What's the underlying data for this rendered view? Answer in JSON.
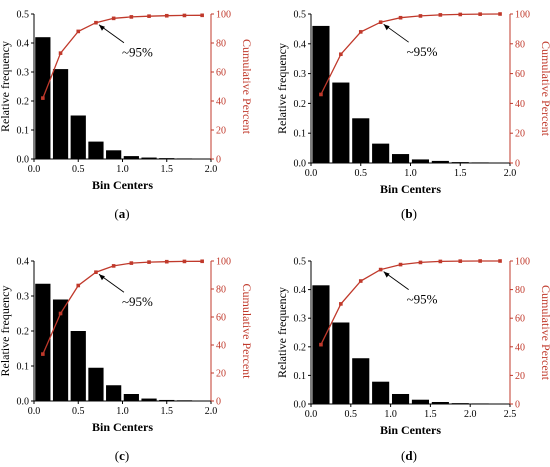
{
  "colors": {
    "bar": "#000000",
    "cumulative": "#c0392b",
    "axis": "#000000",
    "annotation": "#000000"
  },
  "chart_data": [
    {
      "panel_label": "(a)",
      "type": "bar",
      "xlabel": "Bin Centers",
      "ylabel": "Relative frequency",
      "y2label": "Cumulative Percent",
      "xlim": [
        0,
        2.0
      ],
      "ylim": [
        0,
        0.5
      ],
      "y2lim": [
        0,
        100
      ],
      "xticks": [
        "0.0",
        "0.5",
        "1.0",
        "1.5",
        "2.0"
      ],
      "yticks": [
        "0.0",
        "0.1",
        "0.2",
        "0.3",
        "0.4",
        "0.5"
      ],
      "y2ticks": [
        "0",
        "20",
        "40",
        "60",
        "80",
        "100"
      ],
      "bin_width": 0.2,
      "bins": [
        0.1,
        0.3,
        0.5,
        0.7,
        0.9,
        1.1,
        1.3,
        1.5,
        1.7,
        1.9
      ],
      "frequency": [
        0.42,
        0.31,
        0.15,
        0.06,
        0.03,
        0.01,
        0.005,
        0.003,
        0.002,
        0.001
      ],
      "cumulative": [
        42,
        73,
        88,
        94,
        97,
        98,
        98.5,
        98.8,
        99.0,
        99.1
      ],
      "annotation": "~95%",
      "annotation_point": [
        0.7,
        94
      ]
    },
    {
      "panel_label": "(b)",
      "type": "bar",
      "xlabel": "Bin Centers",
      "ylabel": "Relative frequency",
      "y2label": "Cumulative Percent",
      "xlim": [
        0,
        2.0
      ],
      "ylim": [
        0,
        0.5
      ],
      "y2lim": [
        0,
        100
      ],
      "xticks": [
        "0.0",
        "0.5",
        "1.0",
        "1.5",
        "2.0"
      ],
      "yticks": [
        "0.0",
        "0.1",
        "0.2",
        "0.3",
        "0.4",
        "0.5"
      ],
      "y2ticks": [
        "0",
        "20",
        "40",
        "60",
        "80",
        "100"
      ],
      "bin_width": 0.2,
      "bins": [
        0.1,
        0.3,
        0.5,
        0.7,
        0.9,
        1.1,
        1.3,
        1.5,
        1.7,
        1.9
      ],
      "frequency": [
        0.46,
        0.27,
        0.15,
        0.065,
        0.03,
        0.012,
        0.007,
        0.003,
        0.002,
        0.001
      ],
      "cumulative": [
        46,
        73,
        88,
        94.5,
        97.5,
        98.7,
        99.4,
        99.7,
        99.9,
        100
      ],
      "annotation": "~95%",
      "annotation_point": [
        0.7,
        94.5
      ]
    },
    {
      "panel_label": "(c)",
      "type": "bar",
      "xlabel": "Bin Centers",
      "ylabel": "Relative frequency",
      "y2label": "Cumulative Percent",
      "xlim": [
        0,
        2.0
      ],
      "ylim": [
        0,
        0.4
      ],
      "y2lim": [
        0,
        100
      ],
      "xticks": [
        "0.0",
        "0.5",
        "1.0",
        "1.5",
        "2.0"
      ],
      "yticks": [
        "0.0",
        "0.1",
        "0.2",
        "0.3",
        "0.4"
      ],
      "y2ticks": [
        "0",
        "20",
        "40",
        "60",
        "80",
        "100"
      ],
      "bin_width": 0.2,
      "bins": [
        0.1,
        0.3,
        0.5,
        0.7,
        0.9,
        1.1,
        1.3,
        1.5,
        1.7,
        1.9
      ],
      "frequency": [
        0.335,
        0.29,
        0.2,
        0.095,
        0.045,
        0.02,
        0.007,
        0.003,
        0.002,
        0.001
      ],
      "cumulative": [
        33.5,
        62.5,
        82.5,
        92,
        96.5,
        98.5,
        99.2,
        99.5,
        99.7,
        99.8
      ],
      "annotation": "~95%",
      "annotation_point": [
        0.7,
        92
      ]
    },
    {
      "panel_label": "(d)",
      "type": "bar",
      "xlabel": "Bin Centers",
      "ylabel": "Relative frequency",
      "y2label": "Cumulative Percent",
      "xlim": [
        0,
        2.5
      ],
      "ylim": [
        0,
        0.5
      ],
      "y2lim": [
        0,
        100
      ],
      "xticks": [
        "0.0",
        "0.5",
        "1.0",
        "1.5",
        "2.0",
        "2.5"
      ],
      "yticks": [
        "0.0",
        "0.1",
        "0.2",
        "0.3",
        "0.4",
        "0.5"
      ],
      "y2ticks": [
        "0",
        "20",
        "40",
        "60",
        "80",
        "100"
      ],
      "bin_width": 0.25,
      "bins": [
        0.125,
        0.375,
        0.625,
        0.875,
        1.125,
        1.375,
        1.625,
        1.875,
        2.125,
        2.375
      ],
      "frequency": [
        0.415,
        0.285,
        0.16,
        0.078,
        0.035,
        0.015,
        0.007,
        0.003,
        0.002,
        0.001
      ],
      "cumulative": [
        41.5,
        70,
        86,
        94,
        97.5,
        99,
        99.7,
        99.9,
        100,
        100
      ],
      "annotation": "~95%",
      "annotation_point": [
        0.875,
        94
      ]
    }
  ]
}
